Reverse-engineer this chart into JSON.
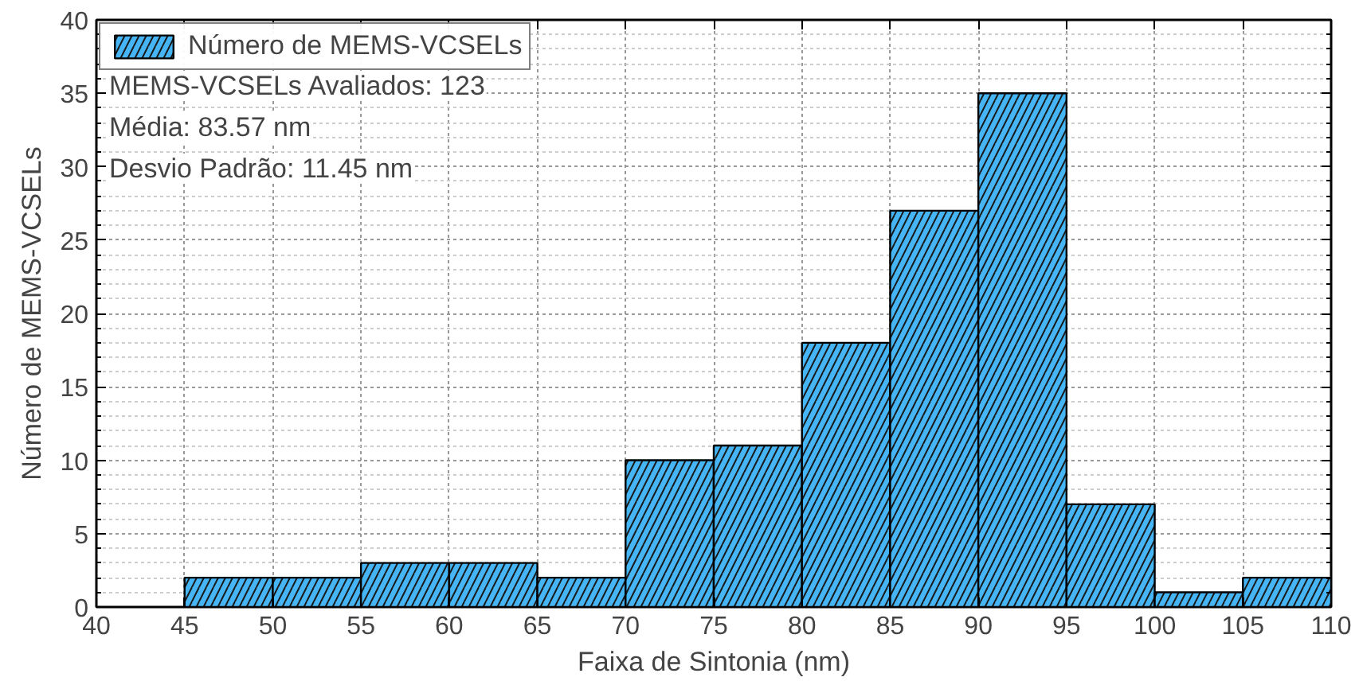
{
  "chart_data": {
    "type": "histogram",
    "xlabel": "Faixa de Sintonia (nm)",
    "ylabel": "Número de MEMS-VCSELs",
    "bins": [
      45,
      50,
      55,
      60,
      65,
      70,
      75,
      80,
      85,
      90,
      95,
      100,
      105,
      110
    ],
    "series": [
      {
        "name": "Número de MEMS-VCSELs",
        "color": "#45b5f5",
        "values": [
          2,
          2,
          3,
          3,
          2,
          10,
          11,
          18,
          27,
          35,
          7,
          1,
          2
        ]
      }
    ],
    "annotations": [
      "MEMS-VCSELs Avaliados: 123",
      "Média: 83.57 nm",
      "Desvio Padrão: 11.45 nm"
    ],
    "xlim": [
      40,
      110
    ],
    "ylim": [
      0,
      40
    ],
    "xticks": [
      40,
      45,
      50,
      55,
      60,
      65,
      70,
      75,
      80,
      85,
      90,
      95,
      100,
      105,
      110
    ],
    "yticks": [
      0,
      5,
      10,
      15,
      20,
      25,
      30,
      35,
      40
    ],
    "grid": true,
    "legend": "top left"
  }
}
